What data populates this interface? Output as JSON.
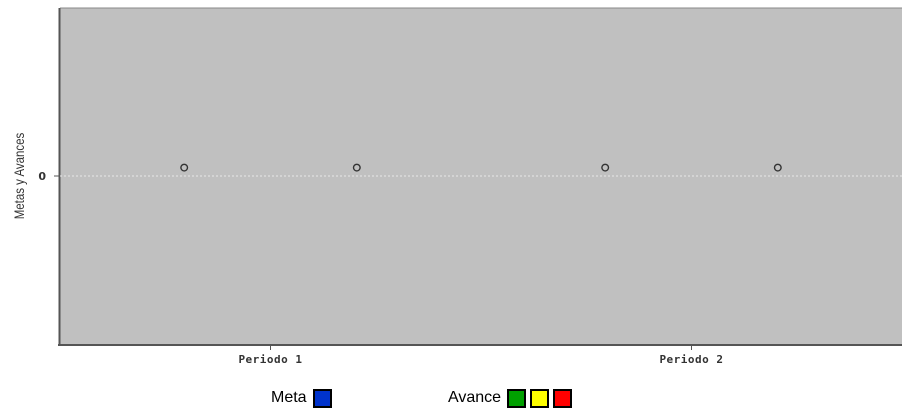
{
  "chart_data": {
    "type": "scatter",
    "title": "",
    "xlabel": "",
    "ylabel": "Metas y Avances",
    "categories": [
      "Periodo 1",
      "Periodo 2"
    ],
    "y_ticks": [
      "0"
    ],
    "grid": true,
    "series": [
      {
        "points": [
          {
            "x": "Periodo 1",
            "y": 0.05,
            "offset": -0.5
          },
          {
            "x": "Periodo 1",
            "y": 0.05,
            "offset": 0.5
          },
          {
            "x": "Periodo 2",
            "y": 0.05,
            "offset": -0.5
          },
          {
            "x": "Periodo 2",
            "y": 0.05,
            "offset": 0.5
          }
        ]
      }
    ],
    "ylim": [
      -1,
      1
    ]
  },
  "legend": {
    "meta_label": "Meta",
    "meta_colors": [
      "#0033cc"
    ],
    "avance_label": "Avance",
    "avance_colors": [
      "#00a000",
      "#ffff00",
      "#ff0000"
    ],
    "placement": "bottom"
  },
  "colors": {
    "plot_bg": "#c0c0c0",
    "grid": "#e8e8e8",
    "point_stroke": "#333333"
  }
}
